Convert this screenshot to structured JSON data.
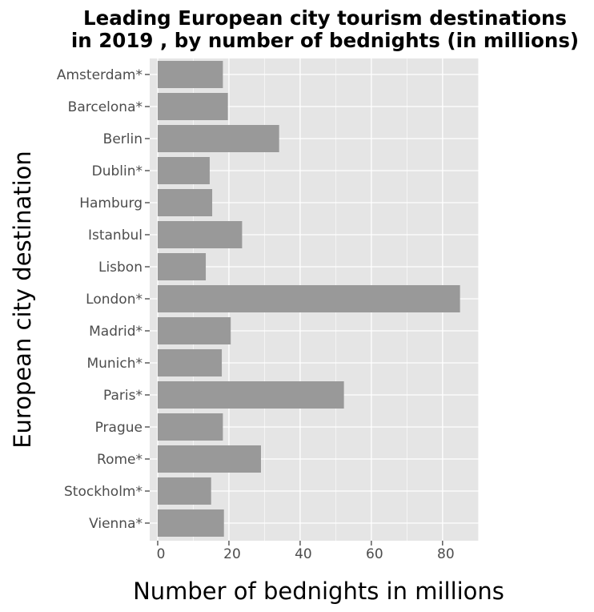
{
  "chart_data": {
    "type": "bar",
    "orientation": "horizontal",
    "title_lines": [
      "Leading European city tourism destinations",
      "in 2019 , by number of bednights (in millions)"
    ],
    "xlabel": "Number of bednights in millions",
    "ylabel": "European city destination",
    "categories": [
      "Amsterdam*",
      "Barcelona*",
      "Berlin",
      "Dublin*",
      "Hamburg",
      "Istanbul",
      "Lisbon",
      "London*",
      "Madrid*",
      "Munich*",
      "Paris*",
      "Prague",
      "Rome*",
      "Stockholm*",
      "Vienna*"
    ],
    "values": [
      18.3,
      19.7,
      34.1,
      14.6,
      15.3,
      23.7,
      13.5,
      84.9,
      20.5,
      18.0,
      52.3,
      18.3,
      29.0,
      15.0,
      18.6
    ],
    "xlim": [
      0,
      90
    ],
    "xticks": [
      0,
      20,
      40,
      60,
      80
    ],
    "grid": true,
    "colors": {
      "panel_background": "#e5e5e5",
      "grid_major": "#ffffff",
      "bar_fill": "#999999",
      "tick_mark": "#333333"
    }
  }
}
